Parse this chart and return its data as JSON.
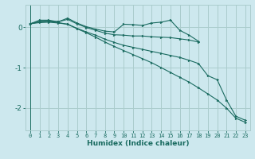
{
  "xlabel": "Humidex (Indice chaleur)",
  "background_color": "#cde8ee",
  "grid_color": "#aacccc",
  "line_color": "#1a6b60",
  "xlim": [
    -0.5,
    23.5
  ],
  "ylim": [
    -2.55,
    0.55
  ],
  "yticks": [
    0,
    -1,
    -2
  ],
  "xticks": [
    0,
    1,
    2,
    3,
    4,
    5,
    6,
    7,
    8,
    9,
    10,
    11,
    12,
    13,
    14,
    15,
    16,
    17,
    18,
    19,
    20,
    21,
    22,
    23
  ],
  "series": [
    [
      0.08,
      0.17,
      0.17,
      0.13,
      0.22,
      0.1,
      0.01,
      -0.05,
      -0.1,
      -0.12,
      0.07,
      0.06,
      0.04,
      0.1,
      0.12,
      0.17,
      -0.08,
      -0.2,
      -0.35,
      null,
      null,
      null,
      null,
      null
    ],
    [
      0.08,
      0.14,
      0.15,
      0.13,
      0.19,
      0.08,
      -0.01,
      -0.08,
      -0.15,
      -0.19,
      -0.2,
      -0.22,
      -0.22,
      -0.24,
      -0.25,
      -0.26,
      -0.29,
      -0.32,
      -0.37,
      null,
      null,
      null,
      null,
      null
    ],
    [
      0.08,
      0.13,
      0.14,
      0.11,
      0.07,
      -0.03,
      -0.12,
      -0.2,
      -0.3,
      -0.38,
      -0.45,
      -0.5,
      -0.55,
      -0.6,
      -0.65,
      -0.7,
      -0.75,
      -0.82,
      -0.9,
      -1.2,
      -1.3,
      -1.8,
      -2.2,
      -2.3
    ],
    [
      0.08,
      0.11,
      0.12,
      0.1,
      0.07,
      -0.04,
      -0.14,
      -0.25,
      -0.37,
      -0.48,
      -0.58,
      -0.68,
      -0.78,
      -0.88,
      -1.0,
      -1.12,
      -1.24,
      -1.36,
      -1.5,
      -1.65,
      -1.8,
      -2.0,
      -2.25,
      -2.35
    ]
  ]
}
